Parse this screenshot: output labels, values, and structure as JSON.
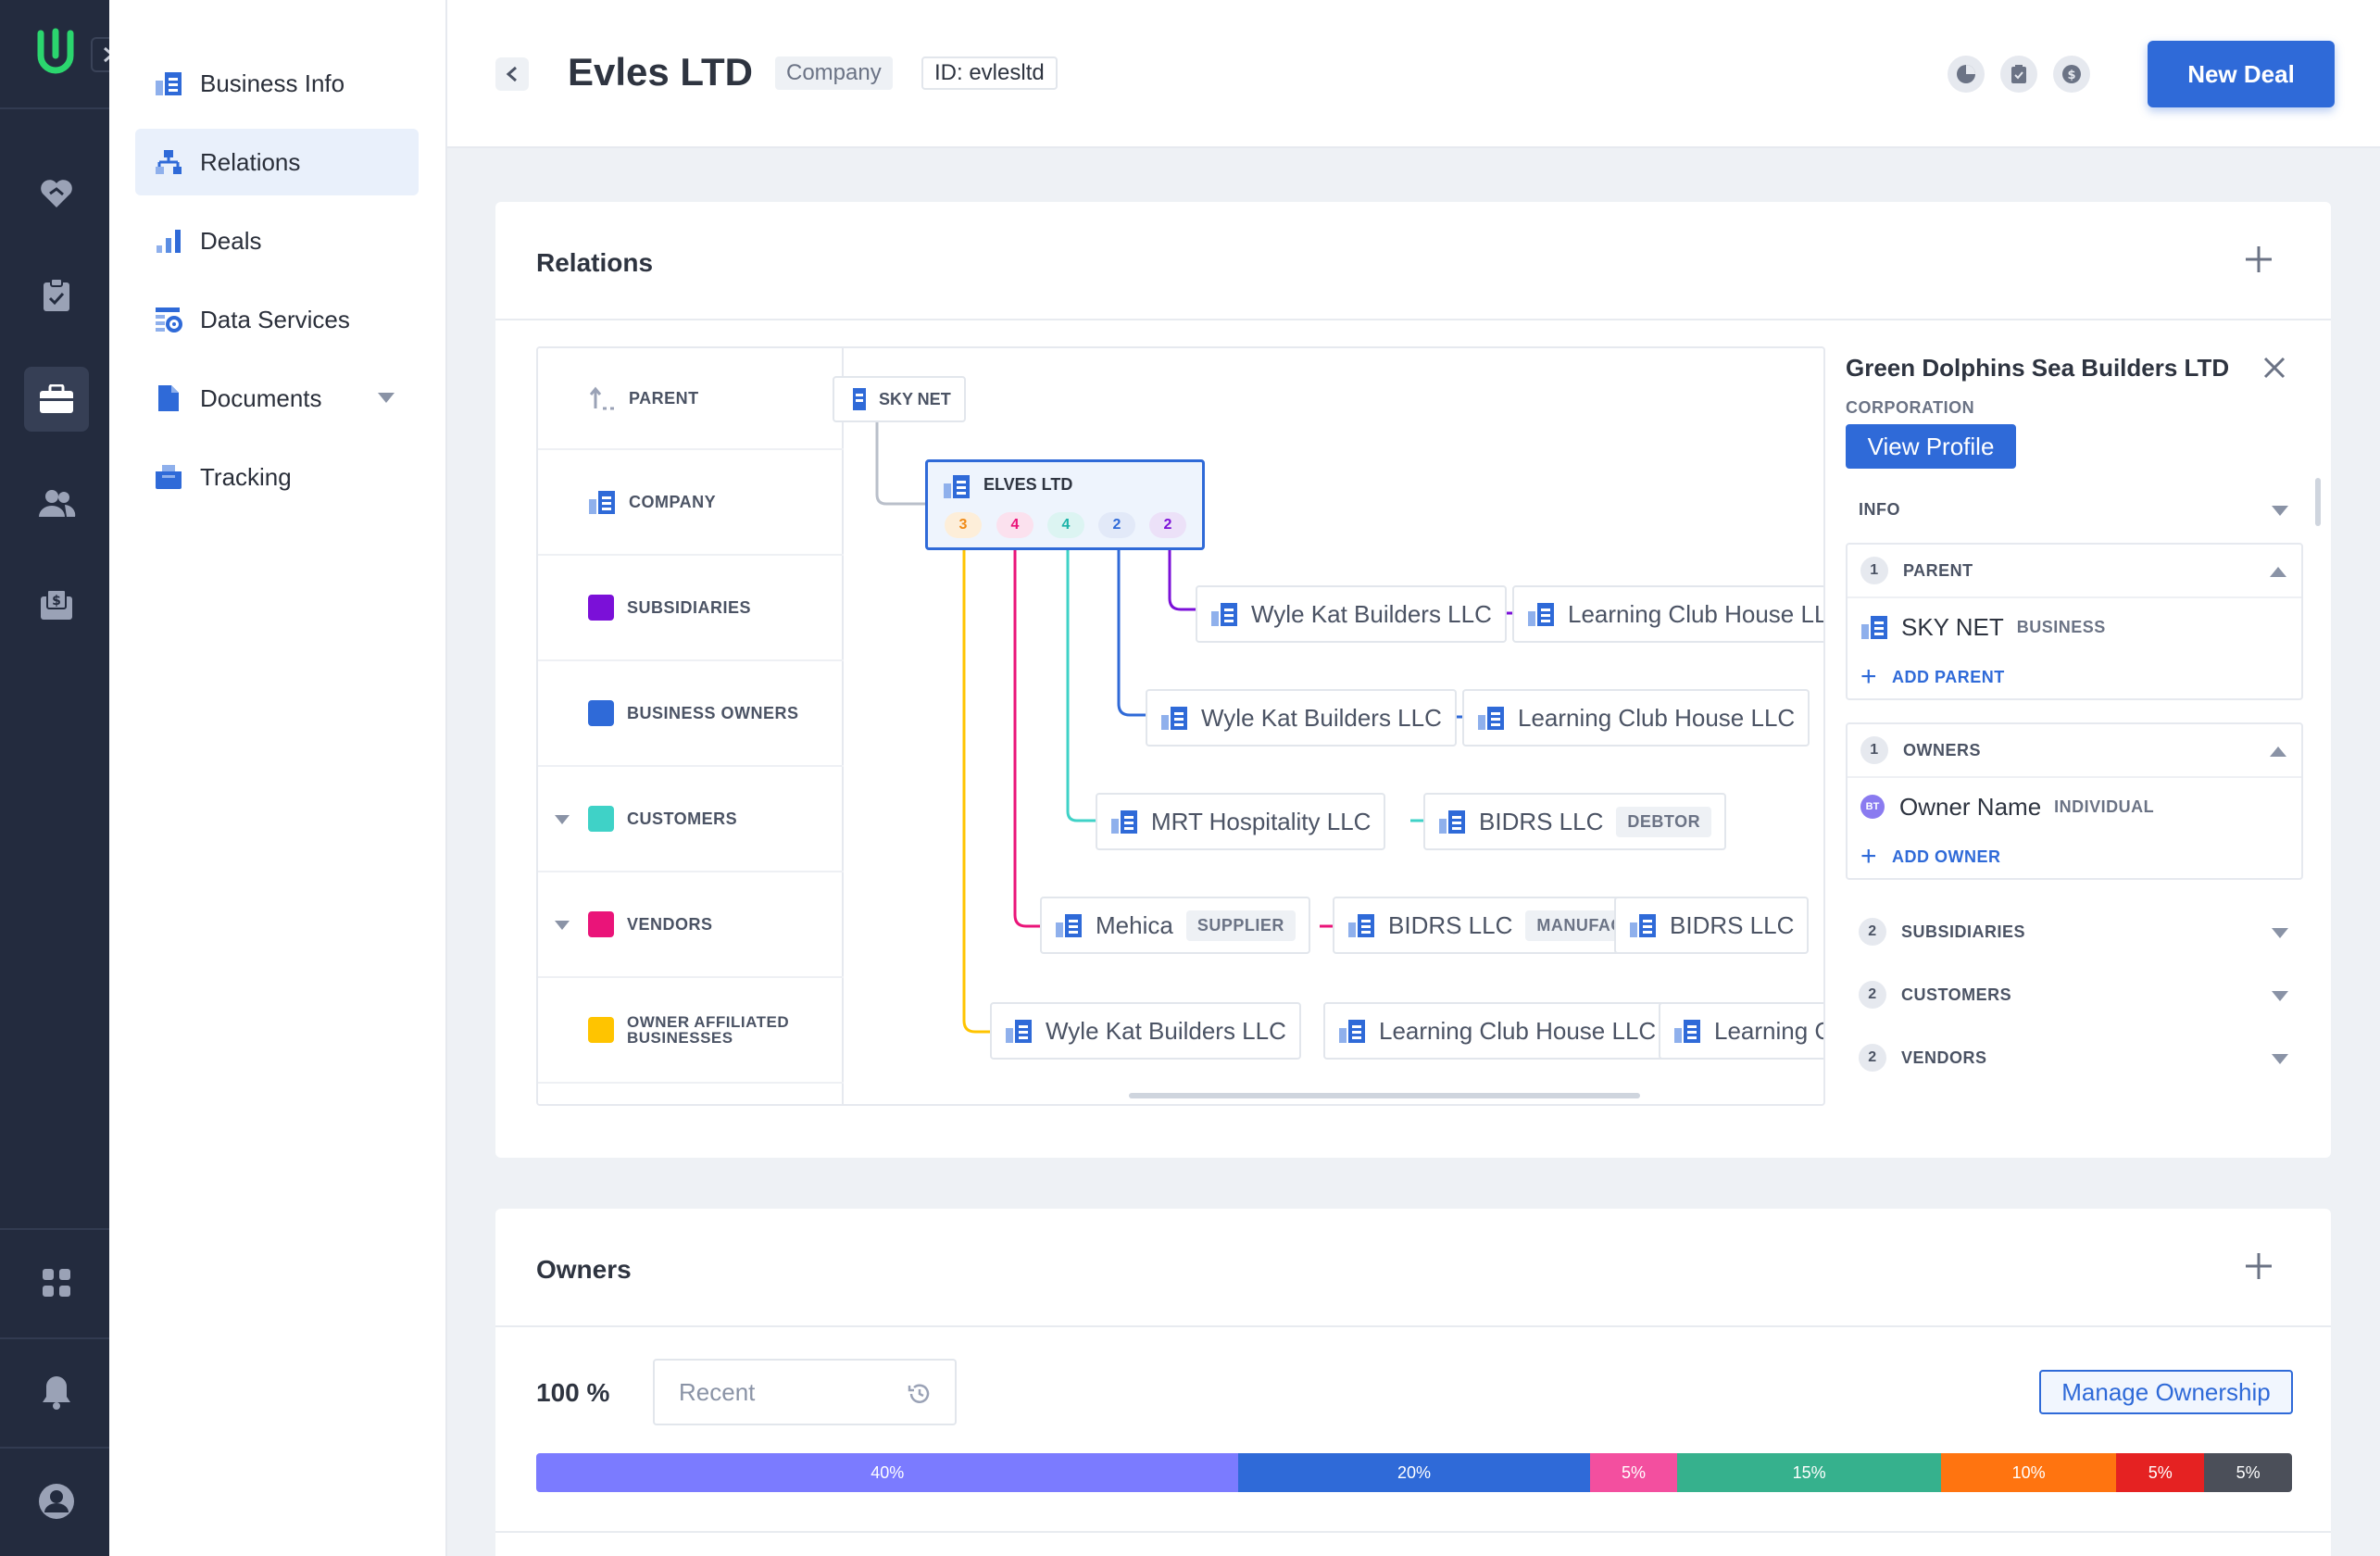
{
  "sidebar_nav": {
    "items": [
      {
        "label": "Business Info",
        "icon": "building-icon"
      },
      {
        "label": "Relations",
        "icon": "org-chart-icon",
        "active": true
      },
      {
        "label": "Deals",
        "icon": "bar-chart-icon"
      },
      {
        "label": "Data Services",
        "icon": "settings-table-icon"
      },
      {
        "label": "Documents",
        "icon": "document-icon"
      },
      {
        "label": "Tracking",
        "icon": "tracking-icon"
      }
    ]
  },
  "header": {
    "title": "Evles LTD",
    "type_chip": "Company",
    "id_chip": "ID: evlesltd",
    "new_deal": "New Deal"
  },
  "relations": {
    "title": "Relations",
    "rows": [
      {
        "label": "PARENT",
        "icon": "parent-arrow-icon"
      },
      {
        "label": "COMPANY",
        "icon": "building-icon"
      },
      {
        "label": "SUBSIDIARIES",
        "color": "#7b10d8"
      },
      {
        "label": "BUSINESS OWNERS",
        "color": "#2f6ad8"
      },
      {
        "label": "CUSTOMERS",
        "color": "#3fd2c7",
        "collapsible": true
      },
      {
        "label": "VENDORS",
        "color": "#ea1479",
        "collapsible": true
      },
      {
        "label": "OWNER AFFILIATED BUSINESSES",
        "color": "#ffc400"
      }
    ],
    "parent_node": "SKY NET",
    "focus": {
      "name": "ELVES LTD",
      "badges": [
        "3",
        "4",
        "4",
        "2",
        "2"
      ]
    },
    "subsidiaries": [
      "Wyle Kat Builders LLC",
      "Learning Club House LLC"
    ],
    "business_owners": [
      "Wyle Kat Builders LLC",
      "Learning Club House LLC"
    ],
    "customers": [
      {
        "name": "MRT Hospitality LLC",
        "tag": ""
      },
      {
        "name": "BIDRS LLC",
        "tag": "DEBTOR"
      }
    ],
    "vendors": [
      {
        "name": "Mehica",
        "tag": "SUPPLIER"
      },
      {
        "name": "BIDRS LLC",
        "tag": "MANUFACTURE"
      },
      {
        "name": "BIDRS LLC",
        "tag": ""
      }
    ],
    "affiliated": [
      "Wyle Kat Builders LLC",
      "Learning Club House LLC",
      "Learning Club House LLC"
    ]
  },
  "side_panel": {
    "name": "Green Dolphins Sea Builders LTD",
    "type": "CORPORATION",
    "view_profile": "View Profile",
    "info": "INFO",
    "parent": {
      "count": "1",
      "label": "PARENT",
      "item": "SKY NET",
      "item_type": "BUSINESS",
      "add": "ADD PARENT"
    },
    "owners": {
      "count": "1",
      "label": "OWNERS",
      "item": "Owner Name",
      "item_type": "INDIVIDUAL",
      "initials": "BT",
      "add": "ADD OWNER"
    },
    "collapsed": [
      {
        "count": "2",
        "label": "SUBSIDIARIES"
      },
      {
        "count": "2",
        "label": "CUSTOMERS"
      },
      {
        "count": "2",
        "label": "VENDORS"
      }
    ]
  },
  "owners": {
    "title": "Owners",
    "total": "100 %",
    "filter_placeholder": "Recent",
    "manage": "Manage Ownership",
    "segments": [
      {
        "label": "40%",
        "value": 40,
        "color": "#7b7bff"
      },
      {
        "label": "20%",
        "value": 20,
        "color": "#2f6ad8"
      },
      {
        "label": "5%",
        "value": 5,
        "color": "#f34f9f"
      },
      {
        "label": "15%",
        "value": 15,
        "color": "#36b18d"
      },
      {
        "label": "10%",
        "value": 10,
        "color": "#ff7410"
      },
      {
        "label": "5%",
        "value": 5,
        "color": "#e52222"
      },
      {
        "label": "5%",
        "value": 5,
        "color": "#4b4f59"
      }
    ]
  },
  "colors": {
    "accent": "#2f6ad8",
    "rail": "#232b3e",
    "logo": "#2bd66e"
  }
}
